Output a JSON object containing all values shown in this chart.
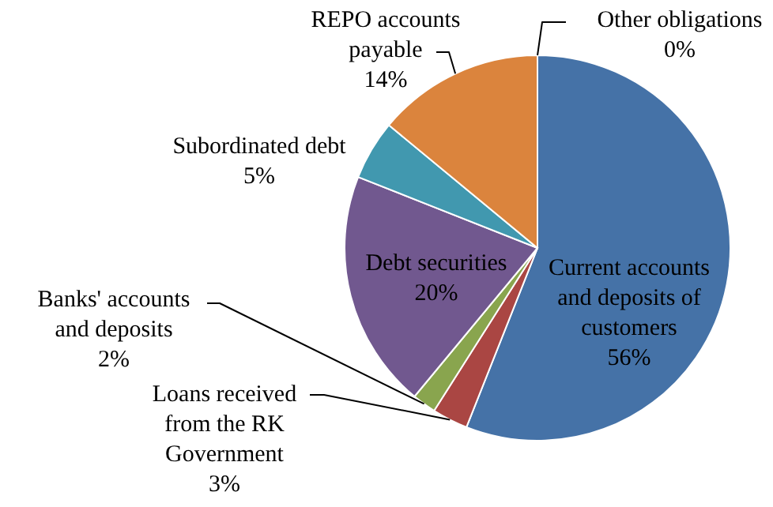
{
  "chart_data": {
    "type": "pie",
    "categories": [
      "Other obligations",
      "Current accounts and deposits of customers",
      "Loans received from the RK Government",
      "Banks' accounts and deposits",
      "Debt securities",
      "Subordinated debt",
      "REPO accounts payable"
    ],
    "values": [
      0,
      56,
      3,
      2,
      20,
      5,
      14
    ],
    "value_labels": [
      "0%",
      "56%",
      "3%",
      "2%",
      "20%",
      "5%",
      "14%"
    ],
    "colors": [
      "#93a9cf",
      "#4572a7",
      "#aa4643",
      "#89a54e",
      "#71588f",
      "#4198af",
      "#db843d"
    ],
    "legend": false
  }
}
